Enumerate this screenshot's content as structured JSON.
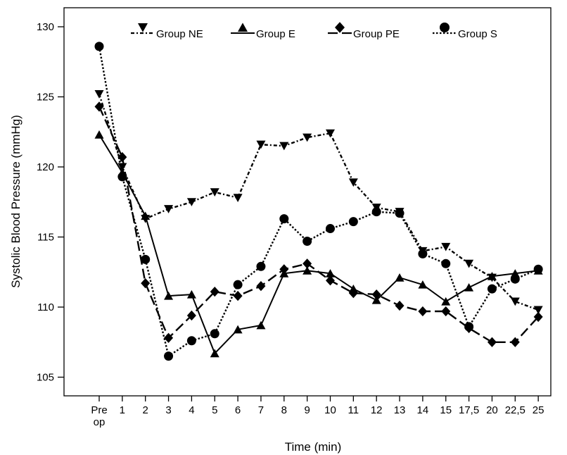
{
  "chart_data": {
    "type": "line",
    "xlabel": "Time (min)",
    "ylabel": "Systolic Blood Pressure (mmHg)",
    "ylim": [
      103,
      131.5
    ],
    "yticks": [
      105,
      110,
      115,
      120,
      125,
      130
    ],
    "categories": [
      "Pre op",
      "1",
      "2",
      "3",
      "4",
      "5",
      "6",
      "7",
      "8",
      "9",
      "10",
      "11",
      "12",
      "13",
      "14",
      "15",
      "17,5",
      "20",
      "22,5",
      "25"
    ],
    "grid": false,
    "legend_position": "top",
    "series": [
      {
        "name": "Group NE",
        "marker": "triangle-down",
        "line": "dash-dot",
        "values": [
          125.2,
          120.0,
          116.3,
          117.0,
          117.5,
          118.2,
          117.8,
          121.6,
          121.5,
          122.1,
          122.4,
          118.9,
          117.1,
          116.8,
          114.0,
          114.3,
          113.1,
          112.1,
          110.4,
          109.8
        ]
      },
      {
        "name": "Group E",
        "marker": "triangle-up",
        "line": "solid",
        "values": [
          122.3,
          119.6,
          116.5,
          110.8,
          110.9,
          106.7,
          108.4,
          108.7,
          112.4,
          112.6,
          112.4,
          111.3,
          110.5,
          112.1,
          111.6,
          110.4,
          111.4,
          112.2,
          112.4,
          112.6
        ]
      },
      {
        "name": "Group PE",
        "marker": "diamond",
        "line": "dashed",
        "values": [
          124.3,
          120.7,
          111.7,
          107.8,
          109.4,
          111.1,
          110.8,
          111.5,
          112.7,
          113.1,
          111.9,
          111.0,
          110.9,
          110.1,
          109.7,
          109.7,
          108.5,
          107.5,
          107.5,
          109.3
        ]
      },
      {
        "name": "Group S",
        "marker": "circle",
        "line": "dotted",
        "values": [
          128.6,
          119.3,
          113.4,
          106.5,
          107.6,
          108.1,
          111.6,
          112.9,
          116.3,
          114.7,
          115.6,
          116.1,
          116.8,
          116.7,
          113.8,
          113.1,
          108.6,
          111.3,
          112.0,
          112.7
        ]
      }
    ]
  }
}
